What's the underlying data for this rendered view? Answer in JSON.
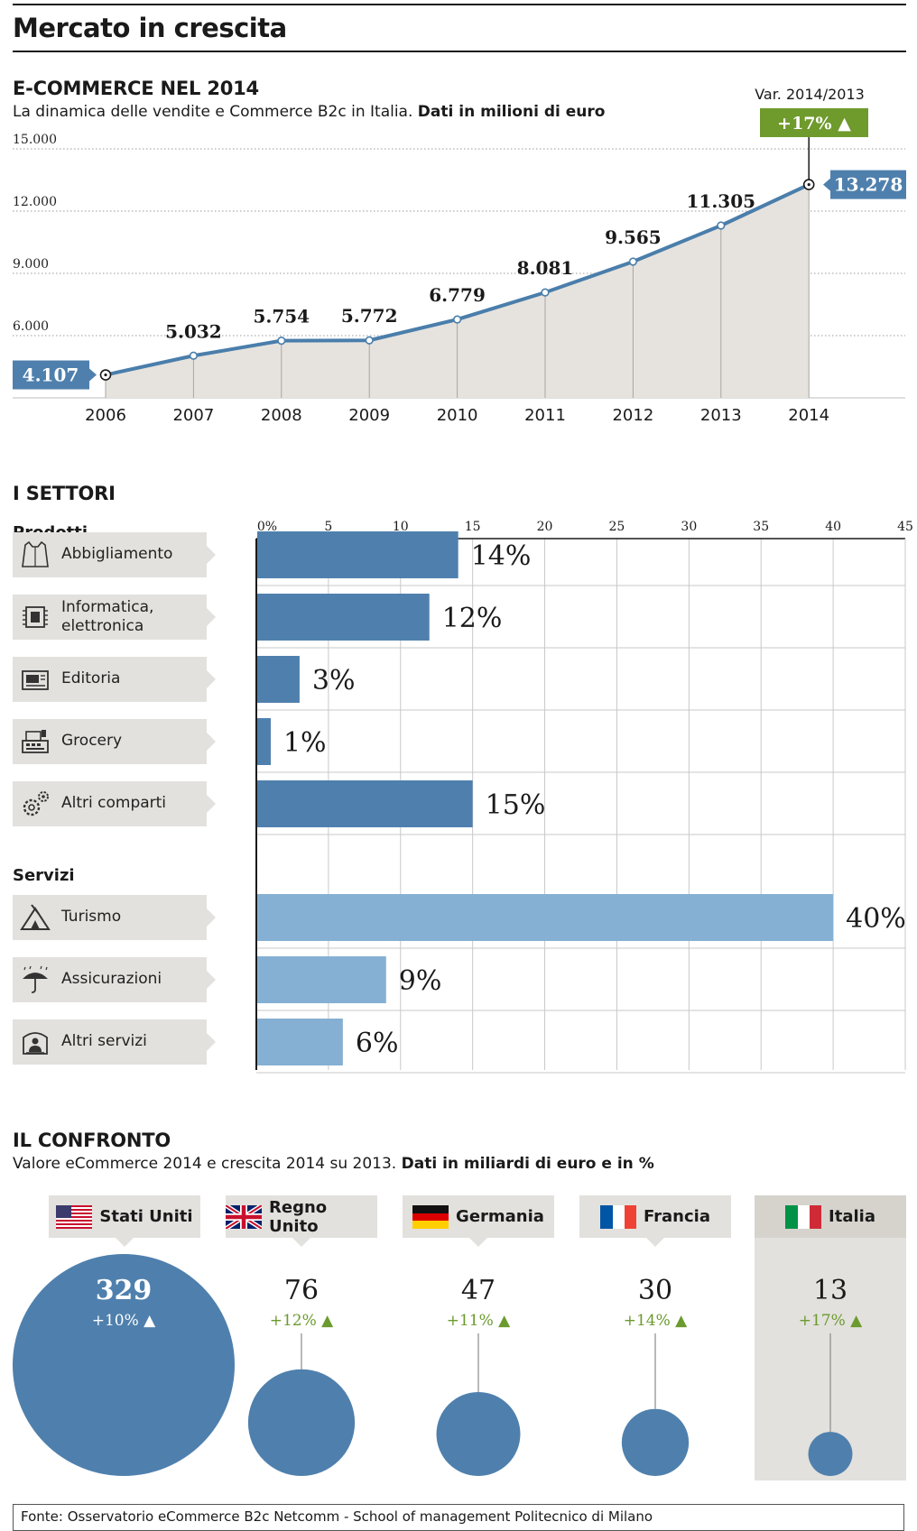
{
  "title": "Mercato in crescita",
  "line_section": {
    "title": "E-COMMERCE NEL 2014",
    "subtitle_plain": "La dinamica delle vendite e Commerce B2c in Italia. ",
    "subtitle_bold": "Dati in milioni di euro",
    "var_label": "Var. 2014/2013",
    "var_badge": "+17% ▲",
    "y_ticks": [
      "15.000",
      "12.000",
      "9.000",
      "6.000"
    ]
  },
  "sectors_section": {
    "title": "I SETTORI",
    "products_label": "Prodotti",
    "services_label": "Servizi",
    "x_ticks": [
      "0%",
      "5",
      "10",
      "15",
      "20",
      "25",
      "30",
      "35",
      "40",
      "45"
    ]
  },
  "compare_section": {
    "title": "IL CONFRONTO",
    "subtitle_plain": "Valore eCommerce 2014 e crescita 2014 su 2013. ",
    "subtitle_bold": "Dati in miliardi di euro e in %",
    "countries": [
      {
        "name": "Stati Uniti",
        "value": "329",
        "growth": "+10% ▲",
        "flag": "us-flag"
      },
      {
        "name": "Regno Unito",
        "value": "76",
        "growth": "+12% ▲",
        "flag": "uk-flag"
      },
      {
        "name": "Germania",
        "value": "47",
        "growth": "+11% ▲",
        "flag": "de-flag"
      },
      {
        "name": "Francia",
        "value": "30",
        "growth": "+14% ▲",
        "flag": "fr-flag"
      },
      {
        "name": "Italia",
        "value": "13",
        "growth": "+17% ▲",
        "flag": "it-flag"
      }
    ]
  },
  "footer": "Fonte: Osservatorio eCommerce B2c Netcomm - School of management Politecnico di Milano",
  "colors": {
    "line": "#4a7eab",
    "area": "#e6e3de",
    "bar_products": "#4f80ad",
    "bar_services": "#85b0d3",
    "badge_green": "#6f9a2c",
    "bubble": "#4f80ad",
    "growth_green": "#6b9a2e"
  },
  "chart_data": [
    {
      "type": "area",
      "title": "E-COMMERCE NEL 2014",
      "x": [
        "2006",
        "2007",
        "2008",
        "2009",
        "2010",
        "2011",
        "2012",
        "2013",
        "2014"
      ],
      "values": [
        4107,
        5032,
        5754,
        5772,
        6779,
        8081,
        9565,
        11305,
        13278
      ],
      "value_labels": [
        "4.107",
        "5.032",
        "5.754",
        "5.772",
        "6.779",
        "8.081",
        "9.565",
        "11.305",
        "13.278"
      ],
      "ylim": [
        3000,
        15000
      ],
      "grid": true
    },
    {
      "type": "bar",
      "title": "I SETTORI",
      "orientation": "horizontal",
      "groups": [
        {
          "name": "Prodotti",
          "categories": [
            "Abbigliamento",
            "Informatica,\nelettronica",
            "Editoria",
            "Grocery",
            "Altri comparti"
          ],
          "values": [
            14,
            12,
            3,
            1,
            15
          ],
          "icons": [
            "shirt-icon",
            "chip-icon",
            "printer-icon",
            "cash-register-icon",
            "gears-icon"
          ]
        },
        {
          "name": "Servizi",
          "categories": [
            "Turismo",
            "Assicurazioni",
            "Altri servizi"
          ],
          "values": [
            40,
            9,
            6
          ],
          "icons": [
            "tent-icon",
            "umbrella-icon",
            "booth-icon"
          ]
        }
      ],
      "value_labels": [
        "14%",
        "12%",
        "3%",
        "1%",
        "15%",
        "40%",
        "9%",
        "6%"
      ],
      "xlim": [
        0,
        45
      ],
      "grid": true
    },
    {
      "type": "scatter",
      "title": "IL CONFRONTO",
      "categories": [
        "Stati Uniti",
        "Regno Unito",
        "Germania",
        "Francia",
        "Italia"
      ],
      "values": [
        329,
        76,
        47,
        30,
        13
      ],
      "growth_pct": [
        10,
        12,
        11,
        14,
        17
      ]
    }
  ]
}
